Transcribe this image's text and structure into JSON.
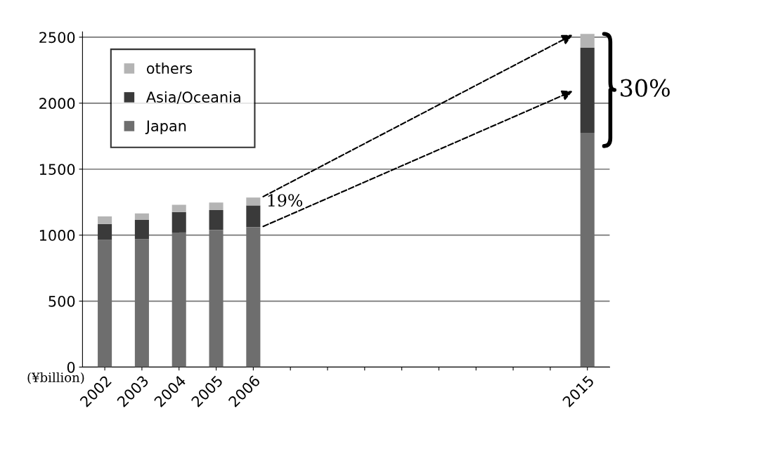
{
  "chart_data": {
    "type": "bar",
    "stacked": true,
    "categories": [
      "2002",
      "2003",
      "2004",
      "2005",
      "2006",
      null,
      null,
      null,
      null,
      null,
      null,
      null,
      null,
      "2015"
    ],
    "series": [
      {
        "name": "Japan",
        "color": "#6e6e6e",
        "values": [
          964,
          970,
          1020,
          1040,
          1060,
          null,
          null,
          null,
          null,
          null,
          null,
          null,
          null,
          1775
        ]
      },
      {
        "name": "Asia/Oceania",
        "color": "#3a3a3a",
        "values": [
          121,
          145,
          155,
          150,
          165,
          null,
          null,
          null,
          null,
          null,
          null,
          null,
          null,
          645
        ]
      },
      {
        "name": "others",
        "color": "#b4b4b4",
        "values": [
          57,
          50,
          55,
          57,
          60,
          null,
          null,
          null,
          null,
          null,
          null,
          null,
          null,
          105
        ]
      }
    ],
    "ylim": [
      0,
      2540
    ],
    "yticks": [
      0,
      500,
      1000,
      1500,
      2000,
      2500
    ],
    "grid": "y",
    "legend": "top left",
    "annotations": [
      "19%",
      "30%",
      "(¥billion)"
    ]
  }
}
